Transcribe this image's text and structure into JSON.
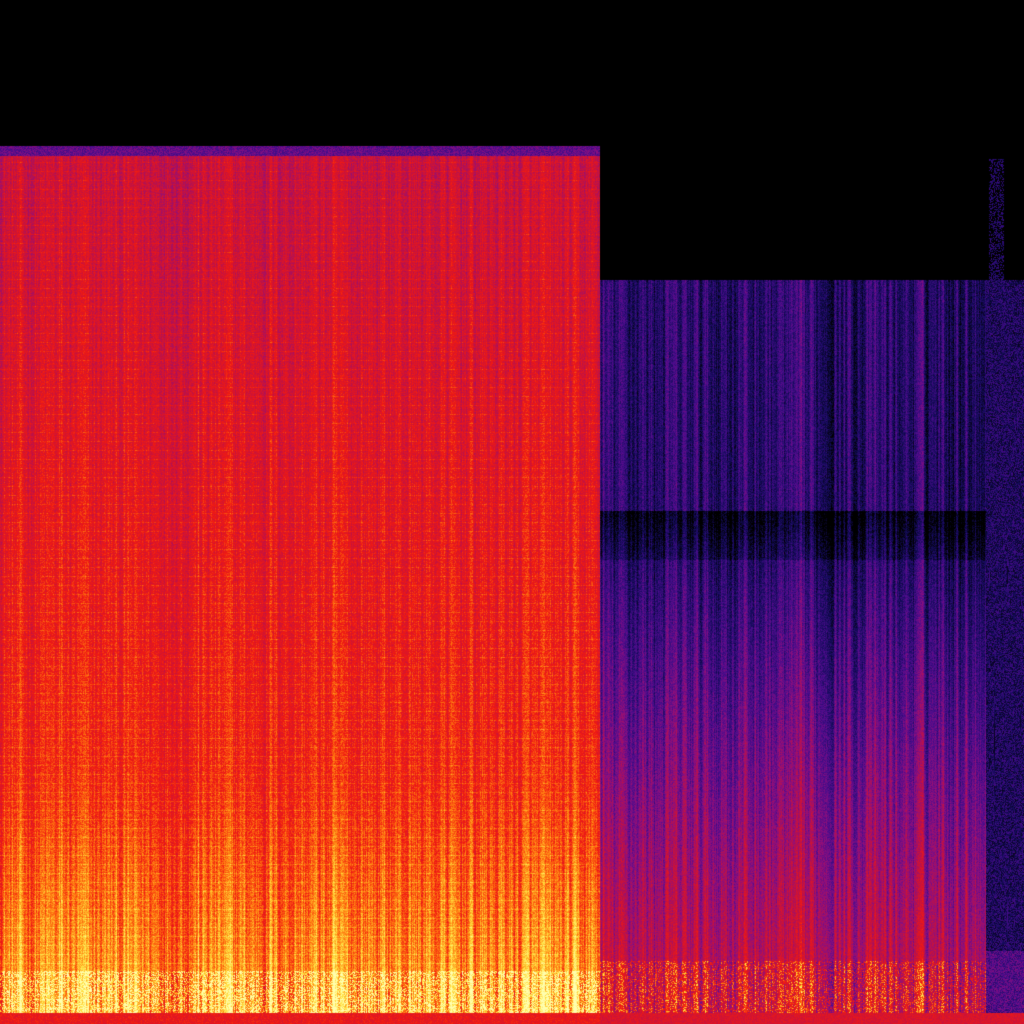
{
  "spectrogram": {
    "colormap": [
      "#000000",
      "#140b5a",
      "#4a0c8c",
      "#8c0f7e",
      "#c8123c",
      "#f01a12",
      "#ff7a10",
      "#ffe040",
      "#ffffb0"
    ],
    "background": "#000000"
  }
}
